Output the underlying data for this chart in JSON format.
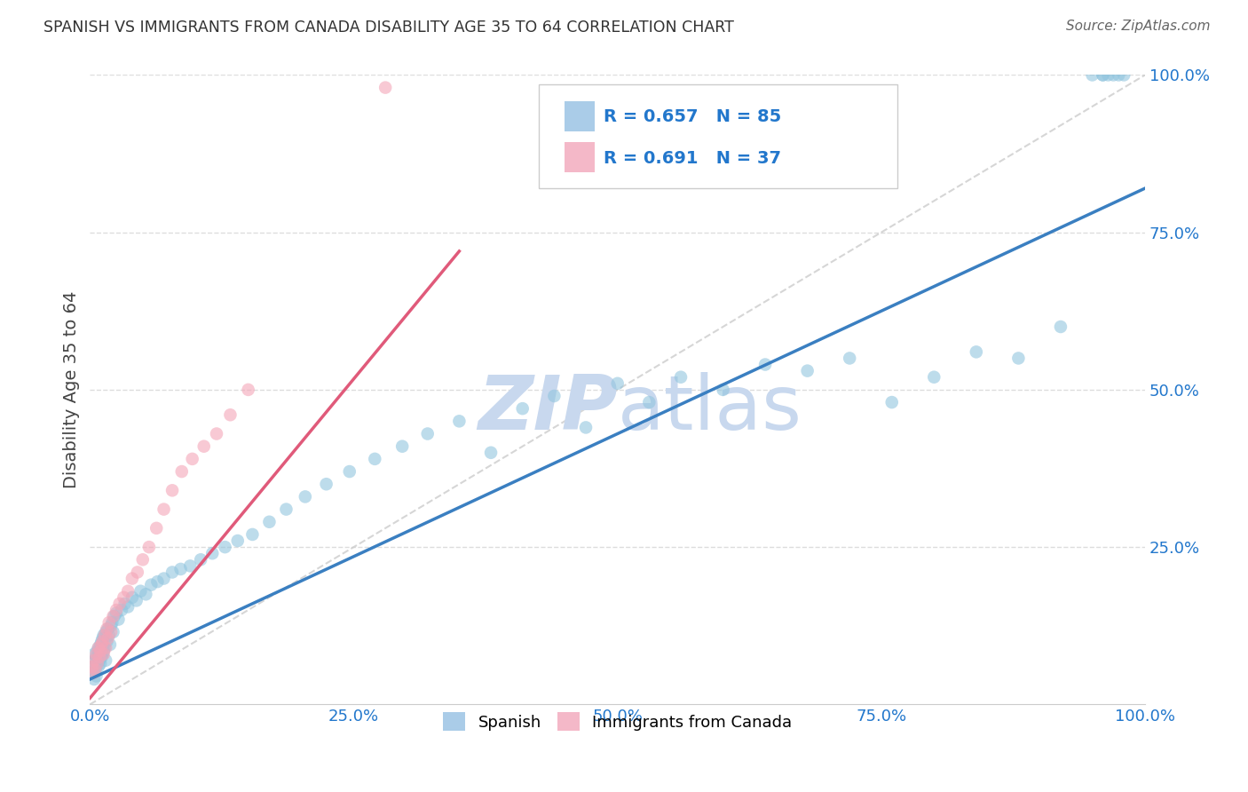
{
  "title": "SPANISH VS IMMIGRANTS FROM CANADA DISABILITY AGE 35 TO 64 CORRELATION CHART",
  "source": "Source: ZipAtlas.com",
  "ylabel": "Disability Age 35 to 64",
  "xlim": [
    0,
    1.0
  ],
  "ylim": [
    0,
    1.0
  ],
  "xticks": [
    0.0,
    0.25,
    0.5,
    0.75,
    1.0
  ],
  "xtick_labels": [
    "0.0%",
    "25.0%",
    "50.0%",
    "75.0%",
    "100.0%"
  ],
  "yticks": [
    0.25,
    0.5,
    0.75,
    1.0
  ],
  "ytick_labels": [
    "25.0%",
    "50.0%",
    "75.0%",
    "100.0%"
  ],
  "spanish_R": 0.657,
  "spanish_N": 85,
  "canada_R": 0.691,
  "canada_N": 37,
  "spanish_color": "#92c5de",
  "canada_color": "#f4a6b8",
  "spanish_line_color": "#3a7fc1",
  "canada_line_color": "#e05a7a",
  "diagonal_color": "#cccccc",
  "background_color": "#ffffff",
  "grid_color": "#dddddd",
  "watermark_color": "#c8d8ee",
  "legend_box_color_spanish": "#aacce8",
  "legend_box_color_canada": "#f4b8c8",
  "spanish_x": [
    0.002,
    0.003,
    0.004,
    0.004,
    0.005,
    0.005,
    0.006,
    0.006,
    0.007,
    0.007,
    0.008,
    0.008,
    0.009,
    0.009,
    0.01,
    0.01,
    0.011,
    0.011,
    0.012,
    0.012,
    0.013,
    0.013,
    0.014,
    0.015,
    0.015,
    0.016,
    0.017,
    0.018,
    0.019,
    0.02,
    0.021,
    0.022,
    0.023,
    0.025,
    0.027,
    0.03,
    0.033,
    0.036,
    0.04,
    0.044,
    0.048,
    0.053,
    0.058,
    0.064,
    0.07,
    0.078,
    0.086,
    0.095,
    0.105,
    0.116,
    0.128,
    0.14,
    0.154,
    0.17,
    0.186,
    0.204,
    0.224,
    0.246,
    0.27,
    0.296,
    0.32,
    0.35,
    0.38,
    0.41,
    0.44,
    0.47,
    0.5,
    0.53,
    0.56,
    0.6,
    0.64,
    0.68,
    0.72,
    0.76,
    0.8,
    0.84,
    0.88,
    0.92,
    0.95,
    0.96,
    0.96,
    0.965,
    0.97,
    0.975,
    0.98
  ],
  "spanish_y": [
    0.05,
    0.06,
    0.04,
    0.08,
    0.055,
    0.07,
    0.045,
    0.075,
    0.065,
    0.085,
    0.06,
    0.09,
    0.07,
    0.08,
    0.065,
    0.095,
    0.075,
    0.1,
    0.08,
    0.105,
    0.085,
    0.11,
    0.09,
    0.07,
    0.115,
    0.1,
    0.12,
    0.11,
    0.095,
    0.125,
    0.13,
    0.115,
    0.14,
    0.145,
    0.135,
    0.15,
    0.16,
    0.155,
    0.17,
    0.165,
    0.18,
    0.175,
    0.19,
    0.195,
    0.2,
    0.21,
    0.215,
    0.22,
    0.23,
    0.24,
    0.25,
    0.26,
    0.27,
    0.29,
    0.31,
    0.33,
    0.35,
    0.37,
    0.39,
    0.41,
    0.43,
    0.45,
    0.4,
    0.47,
    0.49,
    0.44,
    0.51,
    0.48,
    0.52,
    0.5,
    0.54,
    0.53,
    0.55,
    0.48,
    0.52,
    0.56,
    0.55,
    0.6,
    1.0,
    1.0,
    1.0,
    1.0,
    1.0,
    1.0,
    1.0
  ],
  "canada_x": [
    0.002,
    0.003,
    0.004,
    0.005,
    0.006,
    0.007,
    0.008,
    0.009,
    0.01,
    0.011,
    0.012,
    0.013,
    0.014,
    0.015,
    0.016,
    0.017,
    0.018,
    0.02,
    0.022,
    0.025,
    0.028,
    0.032,
    0.036,
    0.04,
    0.045,
    0.05,
    0.056,
    0.063,
    0.07,
    0.078,
    0.087,
    0.097,
    0.108,
    0.12,
    0.133,
    0.15,
    0.28
  ],
  "canada_y": [
    0.06,
    0.05,
    0.07,
    0.055,
    0.08,
    0.065,
    0.09,
    0.075,
    0.085,
    0.095,
    0.1,
    0.08,
    0.11,
    0.09,
    0.12,
    0.105,
    0.13,
    0.115,
    0.14,
    0.15,
    0.16,
    0.17,
    0.18,
    0.2,
    0.21,
    0.23,
    0.25,
    0.28,
    0.31,
    0.34,
    0.37,
    0.39,
    0.41,
    0.43,
    0.46,
    0.5,
    0.98
  ],
  "blue_line": [
    [
      0,
      0.04
    ],
    [
      1.0,
      0.82
    ]
  ],
  "pink_line": [
    [
      0,
      0.01
    ],
    [
      0.35,
      0.72
    ]
  ]
}
